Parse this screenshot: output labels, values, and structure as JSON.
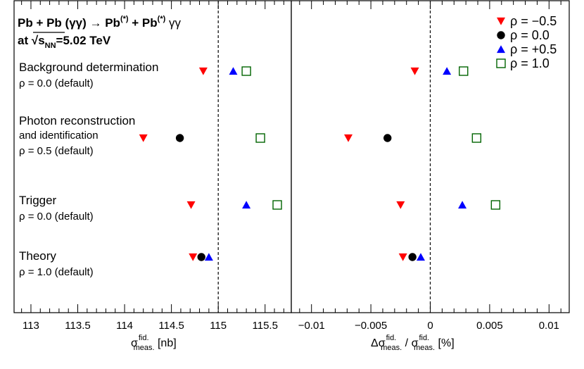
{
  "chart_data": {
    "type": "scatter",
    "title_line1": "Pb + Pb (γγ) → Pb(*) + Pb(*) γγ",
    "title_line2": "at √sNN=5.02 TeV",
    "title_parts": {
      "reaction": "Pb + Pb (γγ) → Pb",
      "star": "(*)",
      "plus": " + Pb",
      "final": " γγ",
      "at": "at ",
      "sqrt": "√",
      "s": "s",
      "nn": "NN",
      "energy": "=5.02 TeV"
    },
    "panels": [
      {
        "id": "left",
        "xlabel": "σ fid. meas. [nb]",
        "xlabel_parts": {
          "sym": "σ",
          "sup": "fid.",
          "sub": "meas.",
          "unit": " [nb]"
        },
        "xlim": [
          112.82,
          115.78
        ],
        "ticks": [
          113,
          113.5,
          114,
          114.5,
          115,
          115.5
        ],
        "tick_labels": [
          "113",
          "113.5",
          "114",
          "114.5",
          "115",
          "115.5"
        ],
        "reference_line": 115.0
      },
      {
        "id": "right",
        "xlabel": "Δσ fid. meas. / σ fid. meas. [%]",
        "xlabel_parts": {
          "sym": "Δσ",
          "sup": "fid.",
          "sub": "meas.",
          "sep": " / ",
          "sym2": "σ",
          "unit": " [%]"
        },
        "xlim": [
          -0.0117,
          0.0117
        ],
        "ticks": [
          -0.01,
          -0.005,
          0,
          0.005,
          0.01
        ],
        "tick_labels": [
          "−0.01",
          "−0.005",
          "0",
          "0.005",
          "0.01"
        ],
        "reference_line": 0.0
      }
    ],
    "categories": [
      {
        "label": "Background determination",
        "label2": "",
        "sublabel": "ρ = 0.0 (default)"
      },
      {
        "label": "Photon reconstruction",
        "label2": "and identification",
        "sublabel": "ρ = 0.5 (default)"
      },
      {
        "label": "Trigger",
        "label2": "",
        "sublabel": "ρ = 0.0 (default)"
      },
      {
        "label": "Theory",
        "label2": "",
        "sublabel": "ρ = 1.0 (default)"
      }
    ],
    "series": [
      {
        "name": "ρ = −0.5",
        "marker": "triangle-down",
        "color": "#ff0000",
        "left": [
          114.84,
          114.2,
          114.71,
          114.73
        ],
        "right": [
          -0.0013,
          -0.0069,
          -0.0025,
          -0.0023
        ]
      },
      {
        "name": "ρ = 0.0",
        "marker": "circle",
        "color": "#000000",
        "left": [
          null,
          114.59,
          null,
          114.82
        ],
        "right": [
          null,
          -0.0036,
          null,
          -0.0015
        ]
      },
      {
        "name": "ρ = +0.5",
        "marker": "triangle-up",
        "color": "#0000ff",
        "left": [
          115.16,
          null,
          115.3,
          114.9
        ],
        "right": [
          0.0014,
          null,
          0.0027,
          -0.0008
        ]
      },
      {
        "name": "ρ = 1.0",
        "marker": "open-square",
        "color": "#006400",
        "left": [
          115.3,
          115.45,
          115.63,
          null
        ],
        "right": [
          0.0028,
          0.0039,
          0.0055,
          null
        ]
      }
    ]
  }
}
